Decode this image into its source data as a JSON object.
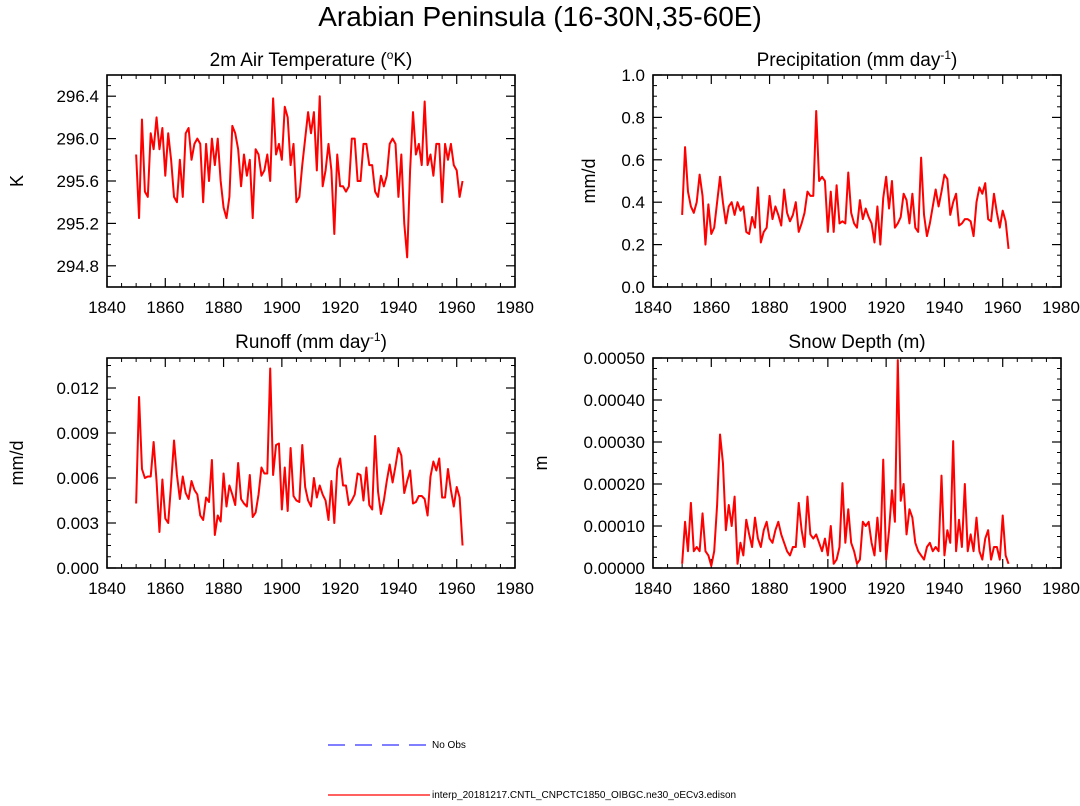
{
  "figure": {
    "title": "Arabian Peninsula (16-30N,35-60E)"
  },
  "legend": [
    {
      "label": "No Obs",
      "color": "#3333ff",
      "style": "dashed"
    },
    {
      "label": "interp_20181217.CNTL_CNPCTC1850_OIBGC.ne30_oECv3.edison",
      "color": "#ff0000",
      "style": "solid"
    }
  ],
  "chart_data": [
    {
      "type": "line",
      "title": "2m Air Temperature (",
      "title_sup": "o",
      "title_tail": "K)",
      "ylabel": "K",
      "xlim": [
        1840,
        1980
      ],
      "ylim": [
        294.6,
        296.6
      ],
      "xticks": [
        1840,
        1860,
        1880,
        1900,
        1920,
        1940,
        1960,
        1980
      ],
      "xtick_labels": [
        "1840",
        "1860",
        "1880",
        "1900",
        "1920",
        "1940",
        "1960",
        "1980"
      ],
      "yticks": [
        294.8,
        295.2,
        295.6,
        296.0,
        296.4
      ],
      "ytick_labels": [
        "294.8",
        "295.2",
        "295.6",
        "296.0",
        "296.4"
      ],
      "x_start": 1850,
      "x_step": 1,
      "series": [
        {
          "name": "interp_20181217.CNTL_CNPCTC1850_OIBGC.ne30_oECv3.edison",
          "color": "#ff0000",
          "values": [
            295.85,
            295.25,
            296.18,
            295.5,
            295.45,
            296.05,
            295.9,
            296.2,
            295.9,
            296.1,
            295.65,
            296.05,
            295.8,
            295.45,
            295.4,
            295.8,
            295.45,
            296.05,
            296.1,
            295.8,
            295.95,
            296.0,
            295.95,
            295.4,
            295.95,
            295.6,
            296.0,
            295.75,
            296.0,
            295.6,
            295.35,
            295.25,
            295.45,
            296.12,
            296.05,
            295.9,
            295.55,
            295.85,
            295.65,
            295.8,
            295.25,
            295.9,
            295.85,
            295.65,
            295.7,
            295.85,
            295.6,
            296.38,
            295.85,
            295.95,
            295.8,
            296.3,
            296.2,
            295.75,
            295.95,
            295.4,
            295.45,
            295.75,
            296.0,
            296.25,
            296.05,
            296.25,
            295.7,
            296.4,
            295.55,
            295.7,
            295.95,
            295.7,
            295.1,
            295.85,
            295.55,
            295.55,
            295.5,
            295.55,
            296.0,
            296.0,
            295.6,
            295.6,
            295.95,
            295.95,
            295.75,
            295.75,
            295.5,
            295.45,
            295.65,
            295.55,
            295.65,
            295.95,
            296.0,
            295.95,
            295.45,
            295.85,
            295.2,
            294.88,
            295.7,
            296.25,
            295.85,
            295.95,
            295.75,
            296.35,
            295.75,
            295.85,
            295.65,
            295.95,
            295.95,
            295.4,
            295.95,
            295.8,
            295.95,
            295.75,
            295.7,
            295.45,
            295.6
          ]
        }
      ]
    },
    {
      "type": "line",
      "title": "Precipitation (mm day",
      "title_sup": "-1",
      "title_tail": ")",
      "ylabel": "mm/d",
      "xlim": [
        1840,
        1980
      ],
      "ylim": [
        0.0,
        1.0
      ],
      "xticks": [
        1840,
        1860,
        1880,
        1900,
        1920,
        1940,
        1960,
        1980
      ],
      "xtick_labels": [
        "1840",
        "1860",
        "1880",
        "1900",
        "1920",
        "1940",
        "1960",
        "1980"
      ],
      "yticks": [
        0.0,
        0.2,
        0.4,
        0.6,
        0.8,
        1.0
      ],
      "ytick_labels": [
        "0.0",
        "0.2",
        "0.4",
        "0.6",
        "0.8",
        "1.0"
      ],
      "x_start": 1850,
      "x_step": 1,
      "series": [
        {
          "name": "interp_20181217.CNTL_CNPCTC1850_OIBGC.ne30_oECv3.edison",
          "color": "#ff0000",
          "values": [
            0.34,
            0.66,
            0.45,
            0.38,
            0.35,
            0.4,
            0.53,
            0.43,
            0.2,
            0.39,
            0.25,
            0.28,
            0.4,
            0.52,
            0.4,
            0.3,
            0.38,
            0.4,
            0.34,
            0.4,
            0.36,
            0.38,
            0.26,
            0.25,
            0.33,
            0.28,
            0.47,
            0.21,
            0.26,
            0.28,
            0.43,
            0.32,
            0.38,
            0.34,
            0.29,
            0.46,
            0.35,
            0.31,
            0.34,
            0.4,
            0.26,
            0.3,
            0.35,
            0.45,
            0.43,
            0.43,
            0.83,
            0.5,
            0.52,
            0.5,
            0.26,
            0.45,
            0.26,
            0.48,
            0.3,
            0.31,
            0.3,
            0.54,
            0.35,
            0.3,
            0.28,
            0.41,
            0.32,
            0.37,
            0.33,
            0.3,
            0.21,
            0.38,
            0.2,
            0.42,
            0.52,
            0.37,
            0.5,
            0.28,
            0.3,
            0.33,
            0.44,
            0.41,
            0.3,
            0.44,
            0.28,
            0.26,
            0.61,
            0.34,
            0.24,
            0.3,
            0.38,
            0.46,
            0.38,
            0.45,
            0.53,
            0.51,
            0.34,
            0.4,
            0.44,
            0.29,
            0.3,
            0.32,
            0.32,
            0.31,
            0.24,
            0.4,
            0.47,
            0.44,
            0.49,
            0.32,
            0.31,
            0.44,
            0.35,
            0.28,
            0.36,
            0.31,
            0.18
          ]
        }
      ]
    },
    {
      "type": "line",
      "title": "Runoff (mm day",
      "title_sup": "-1",
      "title_tail": ")",
      "ylabel": "mm/d",
      "xlim": [
        1840,
        1980
      ],
      "ylim": [
        0.0,
        0.014
      ],
      "xticks": [
        1840,
        1860,
        1880,
        1900,
        1920,
        1940,
        1960,
        1980
      ],
      "xtick_labels": [
        "1840",
        "1860",
        "1880",
        "1900",
        "1920",
        "1940",
        "1960",
        "1980"
      ],
      "yticks": [
        0.0,
        0.003,
        0.006,
        0.009,
        0.012
      ],
      "ytick_labels": [
        "0.000",
        "0.003",
        "0.006",
        "0.009",
        "0.012"
      ],
      "x_start": 1850,
      "x_step": 1,
      "series": [
        {
          "name": "interp_20181217.CNTL_CNPCTC1850_OIBGC.ne30_oECv3.edison",
          "color": "#ff0000",
          "values": [
            0.0043,
            0.0114,
            0.0066,
            0.006,
            0.0061,
            0.0061,
            0.0084,
            0.0058,
            0.0024,
            0.0059,
            0.0033,
            0.003,
            0.0056,
            0.0085,
            0.0062,
            0.0046,
            0.0061,
            0.005,
            0.0046,
            0.0058,
            0.0052,
            0.0049,
            0.0035,
            0.0032,
            0.0047,
            0.0044,
            0.0072,
            0.0022,
            0.0035,
            0.0031,
            0.0063,
            0.0041,
            0.0055,
            0.0049,
            0.0042,
            0.007,
            0.0046,
            0.0043,
            0.0041,
            0.0062,
            0.0034,
            0.0037,
            0.0049,
            0.0067,
            0.0063,
            0.0063,
            0.0133,
            0.0062,
            0.0082,
            0.0083,
            0.0039,
            0.0067,
            0.0038,
            0.008,
            0.0048,
            0.0045,
            0.0044,
            0.0082,
            0.0054,
            0.0045,
            0.0041,
            0.006,
            0.0047,
            0.0055,
            0.0049,
            0.0045,
            0.0032,
            0.0058,
            0.003,
            0.0066,
            0.0073,
            0.0055,
            0.0055,
            0.0042,
            0.0045,
            0.0049,
            0.0063,
            0.0062,
            0.0045,
            0.0067,
            0.0042,
            0.0039,
            0.0088,
            0.0051,
            0.0036,
            0.0045,
            0.0058,
            0.0069,
            0.0057,
            0.0068,
            0.008,
            0.0075,
            0.005,
            0.0058,
            0.0065,
            0.0043,
            0.0044,
            0.0048,
            0.0048,
            0.0046,
            0.0035,
            0.0061,
            0.0071,
            0.0065,
            0.0073,
            0.0047,
            0.0047,
            0.0066,
            0.0052,
            0.0041,
            0.0054,
            0.0047,
            0.0015
          ]
        }
      ]
    },
    {
      "type": "line",
      "title": "Snow Depth (m)",
      "title_sup": "",
      "title_tail": "",
      "ylabel": "m",
      "xlim": [
        1840,
        1980
      ],
      "ylim": [
        0.0,
        0.0005
      ],
      "xticks": [
        1840,
        1860,
        1880,
        1900,
        1920,
        1940,
        1960,
        1980
      ],
      "xtick_labels": [
        "1840",
        "1860",
        "1880",
        "1900",
        "1920",
        "1940",
        "1960",
        "1980"
      ],
      "yticks": [
        0.0,
        0.0001,
        0.0002,
        0.0003,
        0.0004,
        0.0005
      ],
      "ytick_labels": [
        "0.00000",
        "0.00010",
        "0.00020",
        "0.00030",
        "0.00040",
        "0.00050"
      ],
      "x_start": 1850,
      "x_step": 1,
      "series": [
        {
          "name": "interp_20181217.CNTL_CNPCTC1850_OIBGC.ne30_oECv3.edison",
          "color": "#ff0000",
          "values": [
            1e-05,
            0.00011,
            4e-05,
            0.000155,
            4e-05,
            5e-05,
            4e-05,
            0.00013,
            4e-05,
            3e-05,
            5e-06,
            4e-05,
            0.00015,
            0.000318,
            0.00025,
            9e-05,
            0.00015,
            0.0001,
            0.00017,
            1e-05,
            6e-05,
            3e-05,
            0.000115,
            8e-05,
            5e-05,
            0.00012,
            7e-05,
            5e-05,
            9e-05,
            0.00011,
            7e-05,
            6e-05,
            9e-05,
            0.00011,
            8e-05,
            6e-05,
            4e-05,
            3e-05,
            5e-05,
            5e-05,
            0.000155,
            9e-05,
            5e-05,
            0.00017,
            8e-05,
            7e-05,
            8e-05,
            6e-05,
            4e-05,
            7e-05,
            3e-05,
            0.0001,
            1e-05,
            2e-05,
            5e-05,
            0.000202,
            6e-05,
            0.00014,
            6e-05,
            4e-05,
            1e-05,
            2e-05,
            0.00011,
            0.0001,
            0.00011,
            6e-05,
            3e-05,
            0.00012,
            4e-05,
            0.000258,
            2e-05,
            9e-05,
            0.000185,
            0.00011,
            0.000495,
            0.00016,
            0.0002,
            8e-05,
            0.00014,
            0.00012,
            6e-05,
            4e-05,
            3e-05,
            2e-05,
            5e-05,
            6e-05,
            4e-05,
            5e-05,
            4e-05,
            0.00022,
            3e-05,
            9e-05,
            6e-05,
            0.000302,
            4e-05,
            0.000115,
            5e-05,
            0.0002,
            4e-05,
            8e-05,
            4e-05,
            0.00012,
            4e-05,
            2e-05,
            7e-05,
            9e-05,
            2e-05,
            5e-05,
            5e-05,
            2e-05,
            0.000125,
            3e-05,
            1e-05
          ]
        }
      ]
    }
  ]
}
